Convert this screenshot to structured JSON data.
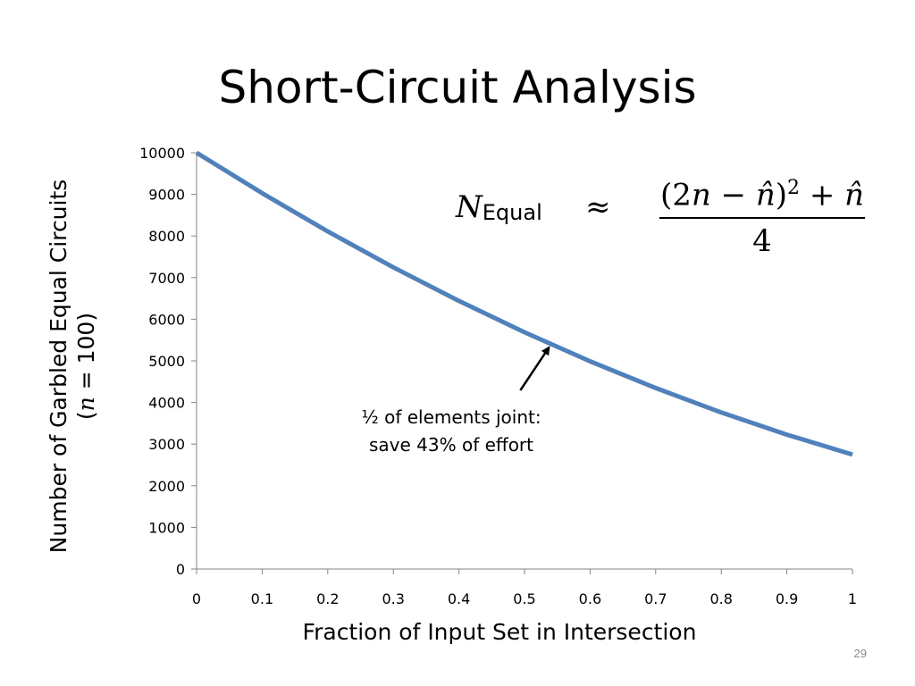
{
  "slide": {
    "title": "Short-Circuit Analysis",
    "page_number": "29"
  },
  "formula": {
    "lhs_symbol": "N",
    "lhs_subscript": "Equal",
    "relation": "≈",
    "numerator_open": "(2",
    "numerator_n": "n",
    "numerator_minus": " − ",
    "numerator_nhat": "n̂",
    "numerator_close": ")",
    "numerator_power": "2",
    "numerator_plus": " + ",
    "numerator_nhat2": "n̂",
    "denominator": "4"
  },
  "annotation": {
    "line1": "½ of elements joint:",
    "line2": "save 43% of effort",
    "target_x": 0.54
  },
  "colors": {
    "series": "#4F81BD",
    "axis": "#868686",
    "text": "#000000"
  },
  "chart_data": {
    "type": "line",
    "xlabel": "Fraction of Input Set in Intersection",
    "ylabel_line1": "Number of Garbled Equal Circuits",
    "ylabel_paren_open": "(",
    "ylabel_var": "n",
    "ylabel_rest": " = 100)",
    "xlim": [
      0,
      1
    ],
    "ylim": [
      0,
      10000
    ],
    "x_ticks": [
      "0",
      "0.1",
      "0.2",
      "0.3",
      "0.4",
      "0.5",
      "0.6",
      "0.7",
      "0.8",
      "0.9",
      "1"
    ],
    "y_ticks": [
      "0",
      "1000",
      "2000",
      "3000",
      "4000",
      "5000",
      "6000",
      "7000",
      "8000",
      "9000",
      "10000"
    ],
    "grid": false,
    "legend": "none",
    "series": [
      {
        "x": [
          0,
          0.1,
          0.2,
          0.3,
          0.4,
          0.5,
          0.6,
          0.7,
          0.8,
          0.9,
          1.0
        ],
        "values": [
          10000,
          9027.5,
          8110,
          7247.5,
          6440,
          5687.5,
          4990,
          4347.5,
          3760,
          3227.5,
          2750
        ]
      }
    ]
  }
}
